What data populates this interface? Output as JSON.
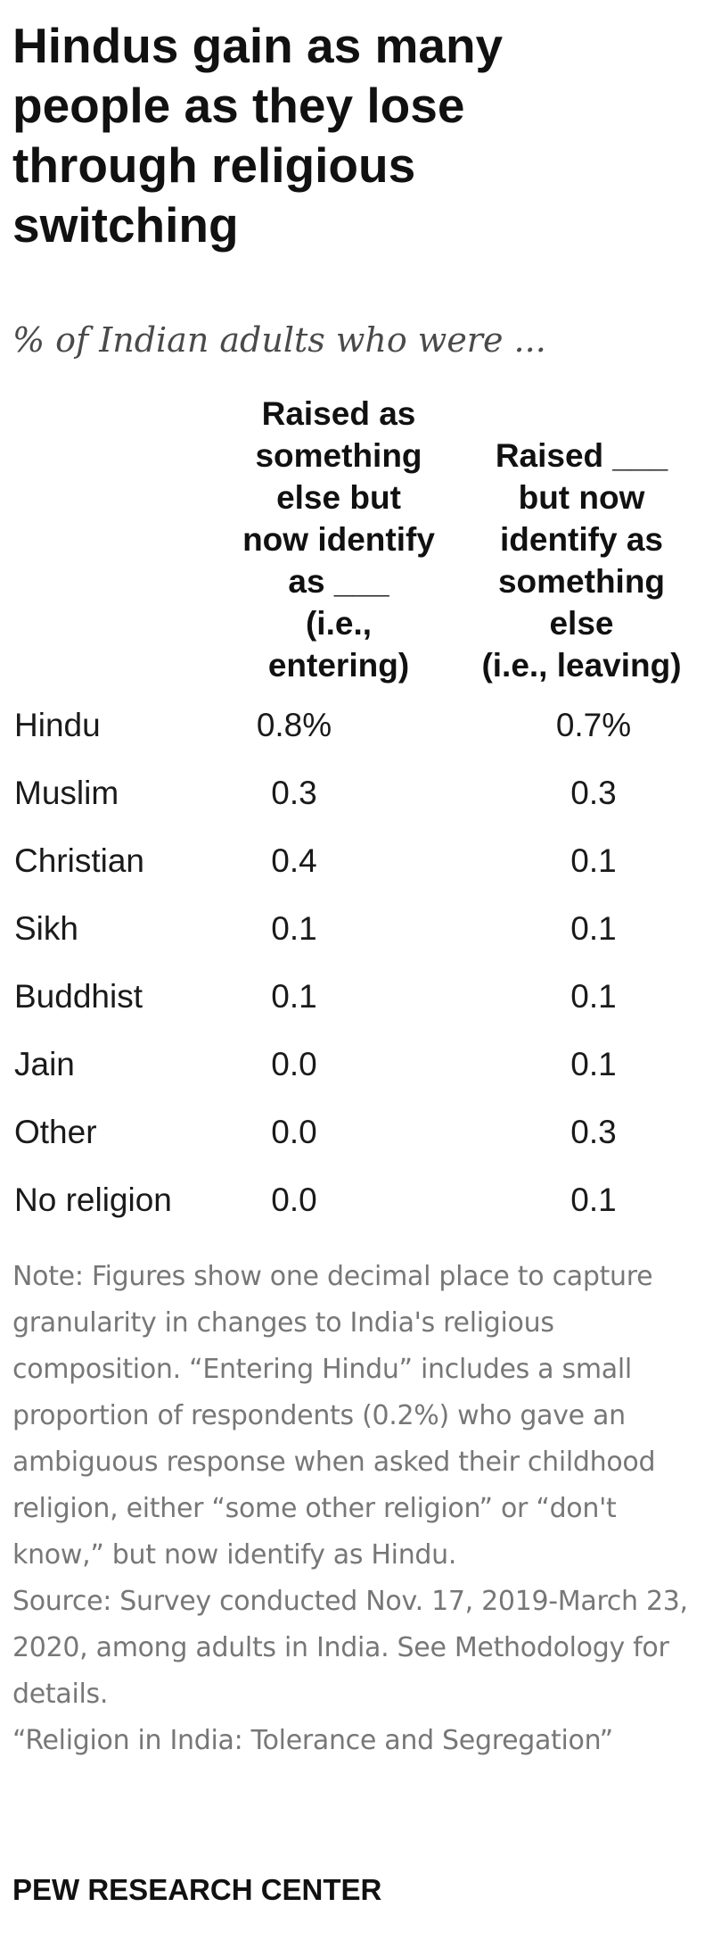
{
  "chart_data": {
    "type": "table",
    "title": "Hindus gain as many\npeople as they lose\nthrough religious\nswitching",
    "subtitle": "% of Indian adults who were ...",
    "columns": [
      "Raised as\nsomething\nelse but\nnow identify\nas ___\n(i.e.,\nentering)",
      "Raised ___\nbut now\nidentify as\nsomething\nelse\n(i.e., leaving)"
    ],
    "rows": [
      {
        "label": "Hindu",
        "entering": "0.8%",
        "leaving": "0.7%"
      },
      {
        "label": "Muslim",
        "entering": "0.3",
        "leaving": "0.3"
      },
      {
        "label": "Christian",
        "entering": "0.4",
        "leaving": "0.1"
      },
      {
        "label": "Sikh",
        "entering": "0.1",
        "leaving": "0.1"
      },
      {
        "label": "Buddhist",
        "entering": "0.1",
        "leaving": "0.1"
      },
      {
        "label": "Jain",
        "entering": "0.0",
        "leaving": "0.1"
      },
      {
        "label": "Other",
        "entering": "0.0",
        "leaving": "0.3"
      },
      {
        "label": "No religion",
        "entering": "0.0",
        "leaving": "0.1"
      }
    ]
  },
  "notes": {
    "note": "Note: Figures show one decimal place to capture granularity in changes to India's religious composition. “Entering Hindu” includes a small proportion of respondents (0.2%) who gave an ambiguous response when asked their childhood religion, either “some other religion” or “don't know,” but now identify as Hindu.",
    "source": "Source: Survey conducted Nov. 17, 2019-March 23, 2020, among adults in India. See Methodology for details.",
    "report": "“Religion in India: Tolerance and Segregation”"
  },
  "brand": "PEW RESEARCH CENTER"
}
